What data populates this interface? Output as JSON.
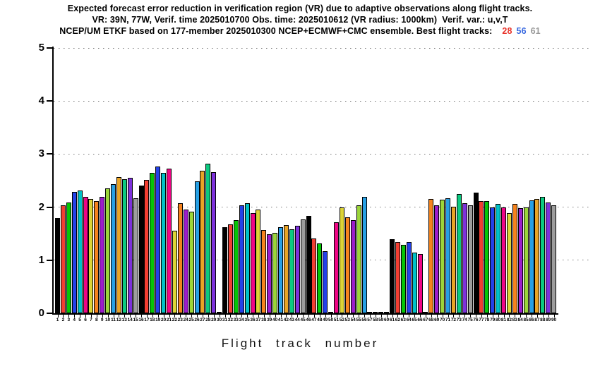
{
  "title": {
    "line1": "Expected forecast error reduction in verification region (VR) due to adaptive observations along flight tracks.",
    "line2": "VR: 39N, 77W, Verif. time 2025010700 Obs. time: 2025010612 (VR radius: 1000km)  Verif. var.: u,v,T",
    "line3_prefix": "NCEP/UM ETKF based on 177-member 2025010300 NCEP+ECMWF+CMC ensemble. Best flight tracks:",
    "best_tracks": [
      {
        "label": "28",
        "color": "#e8332a"
      },
      {
        "label": "56",
        "color": "#3a6ae0"
      },
      {
        "label": "61",
        "color": "#9a9a9a"
      }
    ]
  },
  "chart_data": {
    "type": "bar",
    "title": "Expected forecast error reduction in verification region (VR) due to adaptive observations along flight tracks.",
    "xlabel": "Flight track number",
    "ylabel": "",
    "ylim": [
      0,
      5
    ],
    "yticks": [
      0,
      1,
      2,
      3,
      4,
      5
    ],
    "grid": "horizontal dotted lines at integer y values",
    "legend": "none",
    "best_tracks": [
      28,
      56,
      61
    ],
    "x": [
      1,
      2,
      3,
      4,
      5,
      6,
      7,
      8,
      9,
      10,
      11,
      12,
      13,
      14,
      15,
      16,
      17,
      18,
      19,
      20,
      21,
      22,
      23,
      24,
      25,
      26,
      27,
      28,
      29,
      30,
      31,
      32,
      33,
      34,
      35,
      36,
      37,
      38,
      39,
      40,
      41,
      42,
      43,
      44,
      45,
      46,
      47,
      48,
      49,
      50,
      51,
      52,
      53,
      54,
      55,
      56,
      57,
      58,
      59,
      60,
      61,
      62,
      63,
      64,
      65,
      66,
      67,
      68,
      69,
      70,
      71,
      72,
      73,
      74,
      75,
      76,
      77,
      78,
      79,
      80,
      81,
      82,
      83,
      84,
      85,
      86,
      87,
      88,
      89,
      90
    ],
    "values": [
      1.8,
      2.03,
      2.09,
      2.29,
      2.32,
      2.19,
      2.15,
      2.11,
      2.2,
      2.35,
      2.44,
      2.56,
      2.53,
      2.55,
      2.17,
      2.41,
      2.51,
      2.65,
      2.77,
      2.64,
      2.72,
      1.55,
      2.07,
      1.95,
      1.92,
      2.49,
      2.68,
      2.82,
      2.66,
      0.03,
      1.62,
      1.68,
      1.76,
      2.04,
      2.08,
      1.89,
      1.96,
      1.57,
      1.49,
      1.52,
      1.62,
      1.66,
      1.58,
      1.65,
      1.77,
      1.84,
      1.41,
      1.32,
      1.17,
      0.03,
      1.72,
      2.0,
      1.81,
      1.75,
      2.03,
      2.2,
      0.03,
      0.03,
      0.03,
      0.03,
      1.4,
      1.34,
      1.29,
      1.34,
      1.15,
      1.12,
      0.03,
      2.15,
      2.03,
      2.14,
      2.17,
      2.01,
      2.25,
      2.07,
      2.04,
      2.27,
      2.11,
      2.12,
      2.0,
      2.06,
      2.0,
      1.89,
      2.06,
      1.98,
      2.0,
      2.13,
      2.16,
      2.19,
      2.09,
      2.03
    ],
    "color_rule": "bar color = color_cycle[(track_number - 1) % 15]",
    "color_cycle": [
      "#000000",
      "#f23e32",
      "#06c506",
      "#2441e8",
      "#00c1c8",
      "#f00586",
      "#dcd336",
      "#f5831e",
      "#9c1dcb",
      "#9bd53a",
      "#27a0e5",
      "#e9a426",
      "#0bca80",
      "#7d31db",
      "#9d9d9d"
    ],
    "color_cycle_names": [
      "black",
      "red",
      "green",
      "blue",
      "cyan",
      "magenta-pink",
      "yellow",
      "orange",
      "purple",
      "yellow-green",
      "sky-blue",
      "goldenrod",
      "spring-green",
      "violet",
      "gray"
    ]
  }
}
